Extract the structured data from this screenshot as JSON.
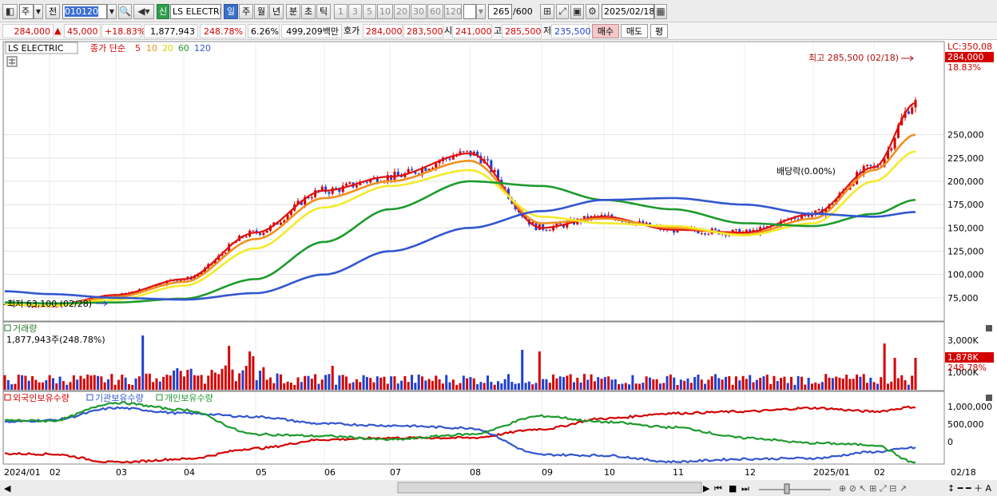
{
  "toolbar": {
    "market_label": "주",
    "prev_label": "전",
    "stock_code": "010120",
    "shin_label": "신",
    "stock_name": "LS ELECTRI",
    "period_tabs": [
      "일",
      "주",
      "월",
      "년",
      "분",
      "초",
      "틱"
    ],
    "period_selected": "일",
    "intervals": [
      "1",
      "3",
      "5",
      "10",
      "20",
      "30",
      "60",
      "120"
    ],
    "count_value": "265",
    "count_max": "/600",
    "date_value": "2025/02/18"
  },
  "quote": {
    "price": "284,000",
    "change": "45,000",
    "change_pct": "+18.83%",
    "volume": "1,877,943",
    "volume_ratio": "248.78%",
    "turnover": "6.26%",
    "amount": "499,209백만",
    "hoga_label": "호가",
    "bid": "284,000",
    "ask": "283,500",
    "open_label": "시",
    "open": "241,000",
    "high_label": "고",
    "high": "285,500",
    "low_label": "저",
    "low": "235,500",
    "buy_label": "매수",
    "sell_label": "매도",
    "eval_label": "평"
  },
  "price_panel": {
    "legend_name": "LS ELECTRIC",
    "legend_ma_prefix": "종가 단순",
    "legend_ma": [
      "5",
      "10",
      "20",
      "60",
      "120"
    ],
    "lc_label": "LC:350,08",
    "last_price_tag": "284,000",
    "last_pct_tag": "18.83%",
    "high_annotation": "최고 285,500 (02/18)",
    "low_annotation": "최저 63,100 (02/28)",
    "dividend_annotation": "배당락(0.00%)",
    "y_ticks": [
      "250,000",
      "225,000",
      "200,000",
      "175,000",
      "150,000",
      "125,000",
      "100,000",
      "75,000"
    ]
  },
  "volume_panel": {
    "title": "거래량",
    "value_text": "1,877,943주(248.78%)",
    "y_tick": "3,000K",
    "tag_value": "1,878K",
    "tag_pct": "248.78%",
    "tag_hidden": "1,000K"
  },
  "holding_panel": {
    "legend": [
      "외국인보유수량",
      "기관보유수량",
      "개인보유수량"
    ],
    "y_ticks": [
      "1,000,000",
      "500,000",
      "0"
    ]
  },
  "x_axis": {
    "labels": [
      "2024/01",
      "02",
      "03",
      "04",
      "05",
      "06",
      "07",
      "08",
      "09",
      "10",
      "11",
      "12",
      "2025/01",
      "02"
    ],
    "end_label": "02/18"
  },
  "colors": {
    "up": "#d40000",
    "down": "#1f3fd0",
    "ma5": "#e01010",
    "ma10": "#f0901e",
    "ma20": "#f4ea2a",
    "ma60": "#1e9a2e",
    "ma120": "#3256d0"
  },
  "chart_data": {
    "type": "line",
    "title": "LS ELECTRIC",
    "x": [
      "2024/01",
      "02",
      "03",
      "04",
      "05",
      "06",
      "07",
      "08",
      "09",
      "10",
      "11",
      "12",
      "2025/01",
      "02",
      "02/18"
    ],
    "series": [
      {
        "name": "5",
        "values": [
          68000,
          66000,
          78000,
          95000,
          145000,
          190000,
          205000,
          230000,
          150000,
          162000,
          148000,
          145000,
          165000,
          215000,
          284000
        ]
      },
      {
        "name": "10",
        "values": [
          68000,
          66000,
          76000,
          92000,
          138000,
          182000,
          200000,
          222000,
          155000,
          160000,
          150000,
          143000,
          160000,
          212000,
          250000
        ]
      },
      {
        "name": "20",
        "values": [
          68000,
          66500,
          73000,
          88000,
          128000,
          172000,
          195000,
          212000,
          162000,
          155000,
          152000,
          142000,
          155000,
          200000,
          232000
        ]
      },
      {
        "name": "60",
        "values": [
          70000,
          69000,
          70000,
          74000,
          95000,
          135000,
          170000,
          200000,
          195000,
          180000,
          170000,
          155000,
          152000,
          165000,
          180000
        ]
      },
      {
        "name": "120",
        "values": [
          82000,
          79000,
          75000,
          73000,
          80000,
          100000,
          125000,
          150000,
          168000,
          180000,
          182000,
          175000,
          165000,
          162000,
          167000
        ]
      }
    ],
    "high": {
      "value": 285500,
      "date": "02/18"
    },
    "low": {
      "value": 63100,
      "date": "02/28"
    },
    "ylim": [
      50000,
      350000
    ]
  }
}
